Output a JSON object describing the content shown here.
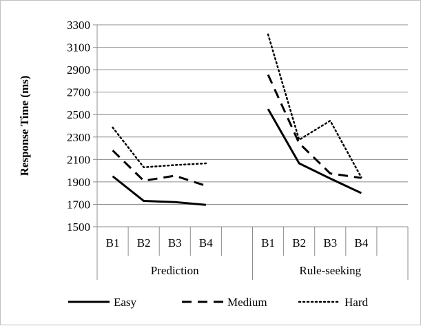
{
  "chart_data": {
    "type": "line",
    "ylabel": "Response Time (ms)",
    "ylim": [
      1500,
      3300
    ],
    "yticks": [
      1500,
      1700,
      1900,
      2100,
      2300,
      2500,
      2700,
      2900,
      3100,
      3300
    ],
    "grid": true,
    "legend_position": "bottom",
    "groups": [
      {
        "label": "Prediction",
        "categories": [
          "B1",
          "B2",
          "B3",
          "B4"
        ]
      },
      {
        "label": "Rule-seeking",
        "categories": [
          "B1",
          "B2",
          "B3",
          "B4"
        ]
      }
    ],
    "series": [
      {
        "name": "Easy",
        "style": "solid",
        "color": "#000000",
        "values": [
          [
            1950,
            1730,
            1720,
            1695
          ],
          [
            2550,
            2065,
            1930,
            1800
          ]
        ]
      },
      {
        "name": "Medium",
        "style": "dashed",
        "color": "#000000",
        "values": [
          [
            2180,
            1910,
            1955,
            1865
          ],
          [
            2855,
            2245,
            1975,
            1935
          ]
        ]
      },
      {
        "name": "Hard",
        "style": "dotted",
        "color": "#000000",
        "values": [
          [
            2385,
            2030,
            2050,
            2065
          ],
          [
            3215,
            2275,
            2445,
            1940
          ]
        ]
      }
    ]
  }
}
